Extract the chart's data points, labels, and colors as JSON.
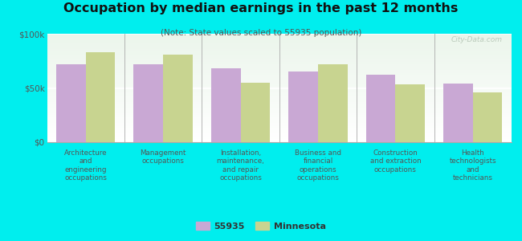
{
  "title": "Occupation by median earnings in the past 12 months",
  "subtitle": "(Note: State values scaled to 55935 population)",
  "background_color": "#00eeee",
  "bar_color_local": "#c9a8d4",
  "bar_color_state": "#c8d490",
  "categories": [
    "Architecture\nand\nengineering\noccupations",
    "Management\noccupations",
    "Installation,\nmaintenance,\nand repair\noccupations",
    "Business and\nfinancial\noperations\noccupations",
    "Construction\nand extraction\noccupations",
    "Health\ntechnologists\nand\ntechnicians"
  ],
  "values_local": [
    72000,
    72000,
    68000,
    65000,
    62000,
    54000
  ],
  "values_state": [
    83000,
    81000,
    55000,
    72000,
    53000,
    46000
  ],
  "ylim": [
    0,
    100000
  ],
  "yticks": [
    0,
    50000,
    100000
  ],
  "ytick_labels": [
    "$0",
    "$50k",
    "$100k"
  ],
  "legend_local": "55935",
  "legend_state": "Minnesota",
  "watermark": "City-Data.com"
}
